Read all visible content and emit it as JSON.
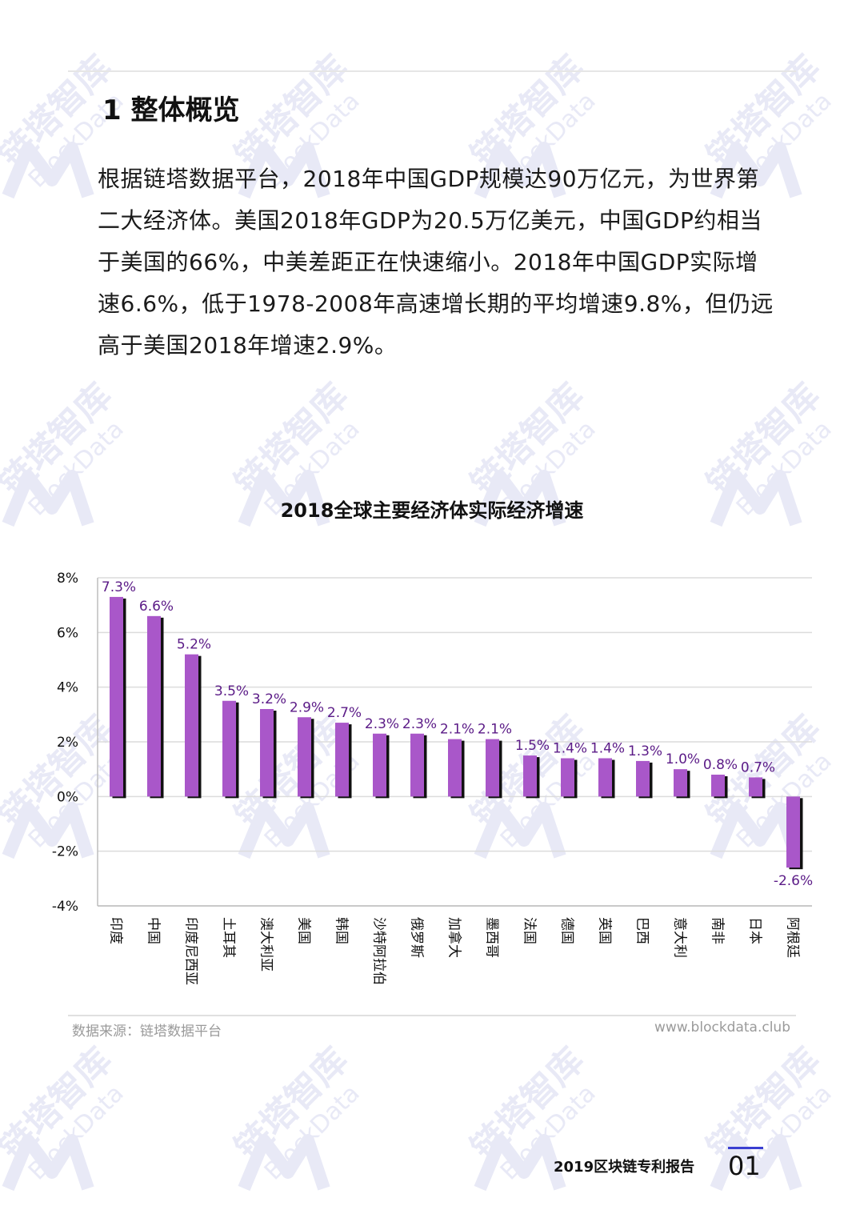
{
  "section": {
    "title": "1 整体概览"
  },
  "intro": {
    "paragraph": "根据链塔数据平台，2018年中国GDP规模达90万亿元，为世界第二大经济体。美国2018年GDP为20.5万亿美元，中国GDP约相当于美国的66%，中美差距正在快速缩小。2018年中国GDP实际增速6.6%，低于1978-2008年高速增长期的平均增速9.8%，但仍远高于美国2018年增速2.9%。"
  },
  "watermark": {
    "brand_cn": "链塔智库",
    "brand_en": "BlockData"
  },
  "chart_data": {
    "type": "bar",
    "title": "2018全球主要经济体实际经济增速",
    "categories": [
      "印度",
      "中国",
      "印度尼西亚",
      "土耳其",
      "澳大利亚",
      "美国",
      "韩国",
      "沙特阿拉伯",
      "俄罗斯",
      "加拿大",
      "墨西哥",
      "法国",
      "德国",
      "英国",
      "巴西",
      "意大利",
      "南非",
      "日本",
      "阿根廷"
    ],
    "values": [
      7.3,
      6.6,
      5.2,
      3.5,
      3.2,
      2.9,
      2.7,
      2.3,
      2.3,
      2.1,
      2.1,
      1.5,
      1.4,
      1.4,
      1.3,
      1.0,
      0.8,
      0.7,
      -2.6
    ],
    "value_labels": [
      "7.3%",
      "6.6%",
      "5.2%",
      "3.5%",
      "3.2%",
      "2.9%",
      "2.7%",
      "2.3%",
      "2.3%",
      "2.1%",
      "2.1%",
      "1.5%",
      "1.4%",
      "1.4%",
      "1.3%",
      "1.0%",
      "0.8%",
      "0.7%",
      "-2.6%"
    ],
    "y_ticks": [
      "8%",
      "6%",
      "4%",
      "2%",
      "0%",
      "-2%",
      "-4%"
    ],
    "y_tick_values": [
      8,
      6,
      4,
      2,
      0,
      -2,
      -4
    ],
    "ylim": [
      -4,
      8
    ],
    "grid": true,
    "bar_color": "#a957c9",
    "label_color": "#5b1b87"
  },
  "footer": {
    "source": "数据来源：链塔数据平台",
    "website": "www.blockdata.club",
    "report_title": "2019区块链专利报告",
    "page_number": "01"
  },
  "colors": {
    "accent": "#3a3fd1",
    "watermark": "#e8e9f6"
  }
}
